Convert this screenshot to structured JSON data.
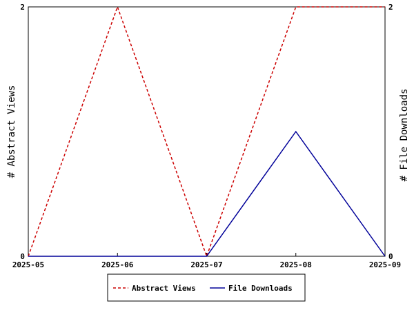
{
  "chart_data": {
    "type": "line",
    "x": [
      "2025-05",
      "2025-06",
      "2025-07",
      "2025-08",
      "2025-09"
    ],
    "series": [
      {
        "name": "Abstract Views",
        "axis": "left",
        "color": "#cc0000",
        "style": "dashed",
        "values": [
          0,
          2,
          0,
          2,
          2
        ]
      },
      {
        "name": "File Downloads",
        "axis": "right",
        "color": "#000099",
        "style": "solid",
        "values": [
          0,
          0,
          0,
          1,
          0
        ]
      }
    ],
    "ylabel_left": "# Abstract Views",
    "ylabel_right": "# File Downloads",
    "ylim_left": [
      0,
      2
    ],
    "ylim_right": [
      0,
      2
    ],
    "yticks_left": [
      "0",
      "2"
    ],
    "yticks_right": [
      "0",
      "2"
    ],
    "grid": false,
    "legend_position": "bottom"
  }
}
